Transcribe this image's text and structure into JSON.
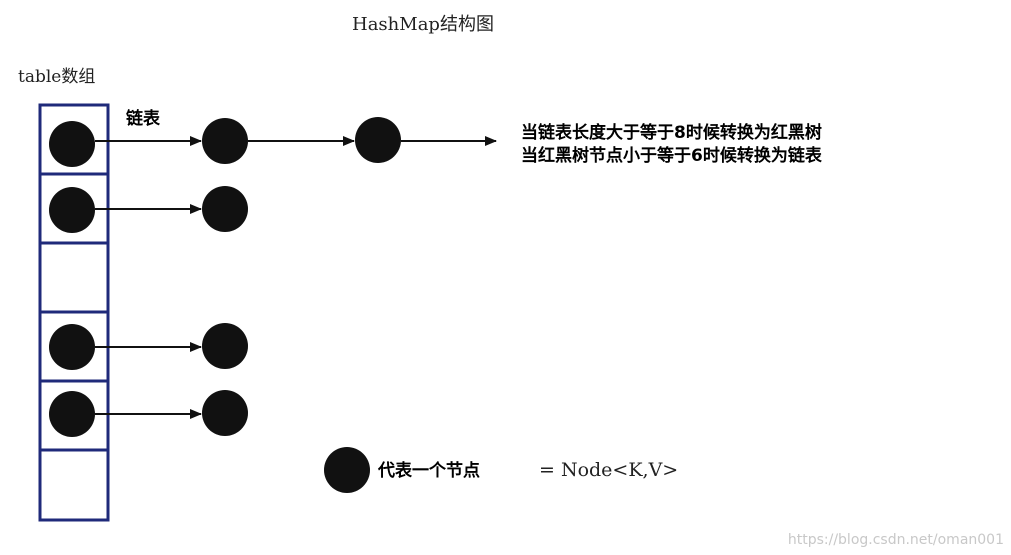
{
  "title": "HashMap结构图",
  "table_label": "table数组",
  "link_label": "链表",
  "notes": [
    "当链表长度大于等于8时候转换为红黑树",
    "当红黑树节点小于等于6时候转换为链表"
  ],
  "legend": {
    "desc": "代表一个节点",
    "formula": "= Node<K,V>"
  },
  "watermark": "https://blog.csdn.net/oman001",
  "colors": {
    "table_border": "#1f2a7a",
    "node": "#111111",
    "arrow": "#111111"
  }
}
